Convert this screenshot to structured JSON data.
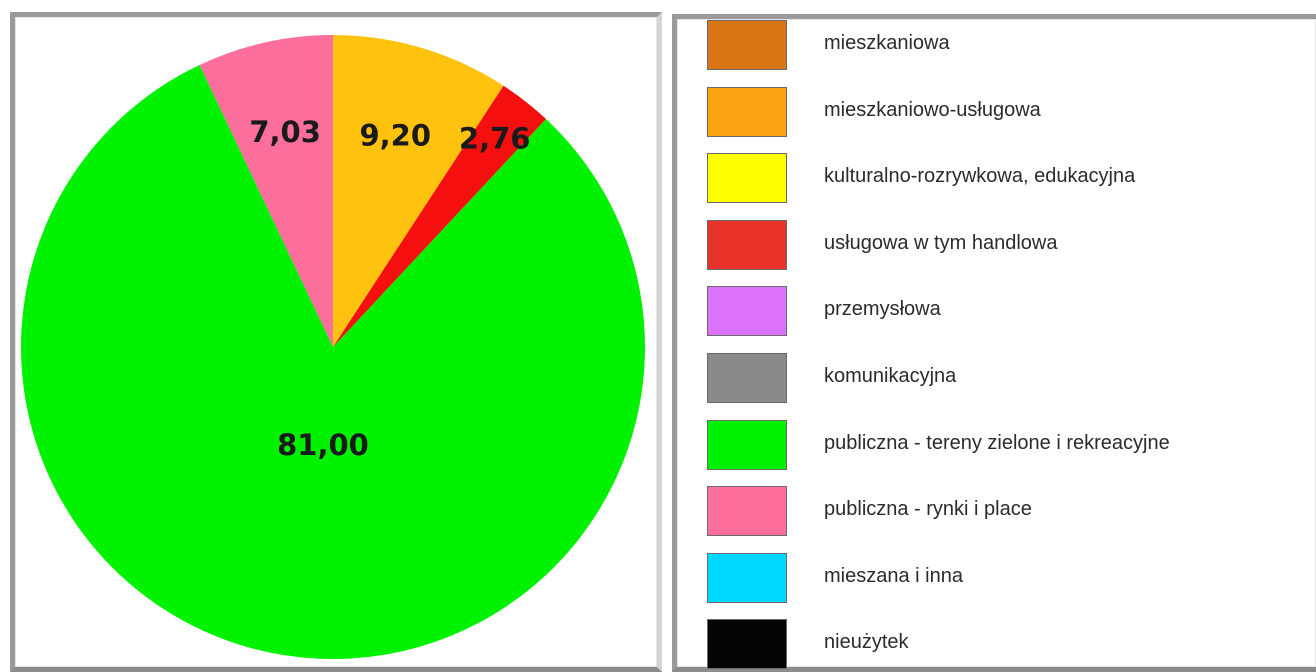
{
  "chart_data": {
    "type": "pie",
    "slices": [
      {
        "label": "",
        "value": 9.2,
        "value_label": "9,20",
        "color": "#ffc20e"
      },
      {
        "label": "",
        "value": 2.76,
        "value_label": "2,76",
        "color": "#f50f0f"
      },
      {
        "label": "",
        "value": 81.0,
        "value_label": "81,00",
        "color": "#00f200"
      },
      {
        "label": "",
        "value": 7.03,
        "value_label": "7,03",
        "color": "#fc6e9b"
      }
    ],
    "start_angle_deg": 0,
    "direction": "clockwise",
    "legend_position": "right",
    "legend": [
      {
        "label": "mieszkaniowa",
        "color": "#d97514"
      },
      {
        "label": "mieszkaniowo-usługowa",
        "color": "#fca311"
      },
      {
        "label": "kulturalno-rozrywkowa, edukacyjna",
        "color": "#ffff00"
      },
      {
        "label": "usługowa w tym handlowa",
        "color": "#e8322a"
      },
      {
        "label": "przemysłowa",
        "color": "#da72fa"
      },
      {
        "label": "komunikacyjna",
        "color": "#8a8a8a"
      },
      {
        "label": "publiczna - tereny zielone i rekreacyjne",
        "color": "#00f200"
      },
      {
        "label": "publiczna - rynki i place",
        "color": "#fc6e9b"
      },
      {
        "label": "mieszana i inna",
        "color": "#00d8ff"
      },
      {
        "label": "nieużytek",
        "color": "#050505"
      }
    ]
  }
}
